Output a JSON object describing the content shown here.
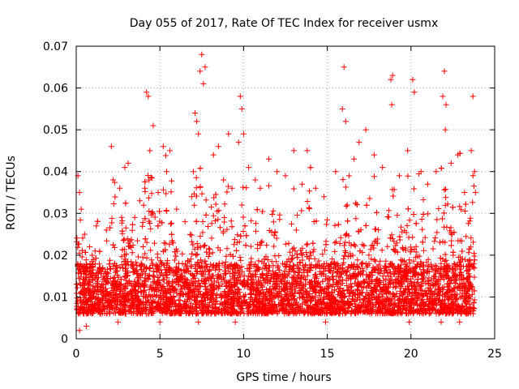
{
  "chart_data": {
    "type": "scatter",
    "title": "Day 055 of 2017, Rate Of TEC Index for receiver usmx",
    "xlabel": "GPS time / hours",
    "ylabel": "ROTI / TECUs",
    "xlim": [
      0,
      25
    ],
    "ylim": [
      0,
      0.07
    ],
    "x_ticks": [
      "0",
      "5",
      "10",
      "15",
      "20",
      "25"
    ],
    "y_ticks": [
      "0",
      "0.01",
      "0.02",
      "0.03",
      "0.04",
      "0.05",
      "0.06",
      "0.07"
    ],
    "grid": true,
    "marker": "plus",
    "series": [
      {
        "color": "#ff0000",
        "points": [
          [
            0.1,
            0.039
          ],
          [
            0.2,
            0.035
          ],
          [
            0.3,
            0.031
          ],
          [
            0.5,
            0.025
          ],
          [
            0.8,
            0.022
          ],
          [
            1.2,
            0.027
          ],
          [
            1.8,
            0.026
          ],
          [
            2.1,
            0.046
          ],
          [
            2.2,
            0.038
          ],
          [
            2.6,
            0.036
          ],
          [
            2.9,
            0.041
          ],
          [
            3.1,
            0.042
          ],
          [
            3.5,
            0.029
          ],
          [
            3.8,
            0.033
          ],
          [
            4.1,
            0.036
          ],
          [
            4.2,
            0.059
          ],
          [
            4.3,
            0.058
          ],
          [
            4.4,
            0.045
          ],
          [
            4.6,
            0.051
          ],
          [
            4.9,
            0.035
          ],
          [
            5.2,
            0.046
          ],
          [
            5.4,
            0.04
          ],
          [
            5.6,
            0.045
          ],
          [
            6.0,
            0.031
          ],
          [
            6.5,
            0.028
          ],
          [
            6.9,
            0.034
          ],
          [
            7.0,
            0.04
          ],
          [
            7.1,
            0.054
          ],
          [
            7.2,
            0.052
          ],
          [
            7.3,
            0.049
          ],
          [
            7.4,
            0.064
          ],
          [
            7.5,
            0.068
          ],
          [
            7.6,
            0.061
          ],
          [
            7.7,
            0.065
          ],
          [
            8.2,
            0.044
          ],
          [
            8.5,
            0.046
          ],
          [
            8.8,
            0.038
          ],
          [
            9.1,
            0.049
          ],
          [
            9.3,
            0.036
          ],
          [
            9.7,
            0.047
          ],
          [
            9.8,
            0.058
          ],
          [
            9.9,
            0.055
          ],
          [
            10.0,
            0.049
          ],
          [
            10.3,
            0.041
          ],
          [
            10.7,
            0.038
          ],
          [
            11.0,
            0.036
          ],
          [
            11.5,
            0.043
          ],
          [
            12.0,
            0.04
          ],
          [
            12.5,
            0.039
          ],
          [
            13.0,
            0.045
          ],
          [
            13.5,
            0.037
          ],
          [
            13.8,
            0.045
          ],
          [
            14.3,
            0.036
          ],
          [
            14.8,
            0.034
          ],
          [
            15.5,
            0.04
          ],
          [
            15.9,
            0.055
          ],
          [
            16.0,
            0.065
          ],
          [
            16.1,
            0.052
          ],
          [
            16.3,
            0.039
          ],
          [
            16.6,
            0.043
          ],
          [
            16.9,
            0.047
          ],
          [
            17.3,
            0.05
          ],
          [
            17.8,
            0.044
          ],
          [
            18.3,
            0.041
          ],
          [
            18.8,
            0.062
          ],
          [
            18.9,
            0.063
          ],
          [
            18.85,
            0.056
          ],
          [
            19.3,
            0.039
          ],
          [
            19.8,
            0.045
          ],
          [
            20.1,
            0.062
          ],
          [
            20.2,
            0.059
          ],
          [
            20.6,
            0.04
          ],
          [
            21.0,
            0.037
          ],
          [
            21.5,
            0.04
          ],
          [
            21.9,
            0.058
          ],
          [
            22.0,
            0.064
          ],
          [
            22.1,
            0.056
          ],
          [
            22.05,
            0.05
          ],
          [
            22.4,
            0.042
          ],
          [
            22.8,
            0.044
          ],
          [
            23.2,
            0.035
          ],
          [
            23.7,
            0.058
          ],
          [
            23.6,
            0.045
          ],
          [
            23.8,
            0.04
          ],
          [
            23.85,
            0.035
          ],
          [
            0.2,
            0.002
          ],
          [
            0.6,
            0.003
          ],
          [
            2.5,
            0.004
          ],
          [
            5.0,
            0.004
          ],
          [
            7.3,
            0.004
          ],
          [
            9.5,
            0.004
          ],
          [
            14.9,
            0.004
          ],
          [
            19.9,
            0.004
          ],
          [
            21.8,
            0.004
          ],
          [
            22.9,
            0.004
          ]
        ]
      }
    ]
  }
}
